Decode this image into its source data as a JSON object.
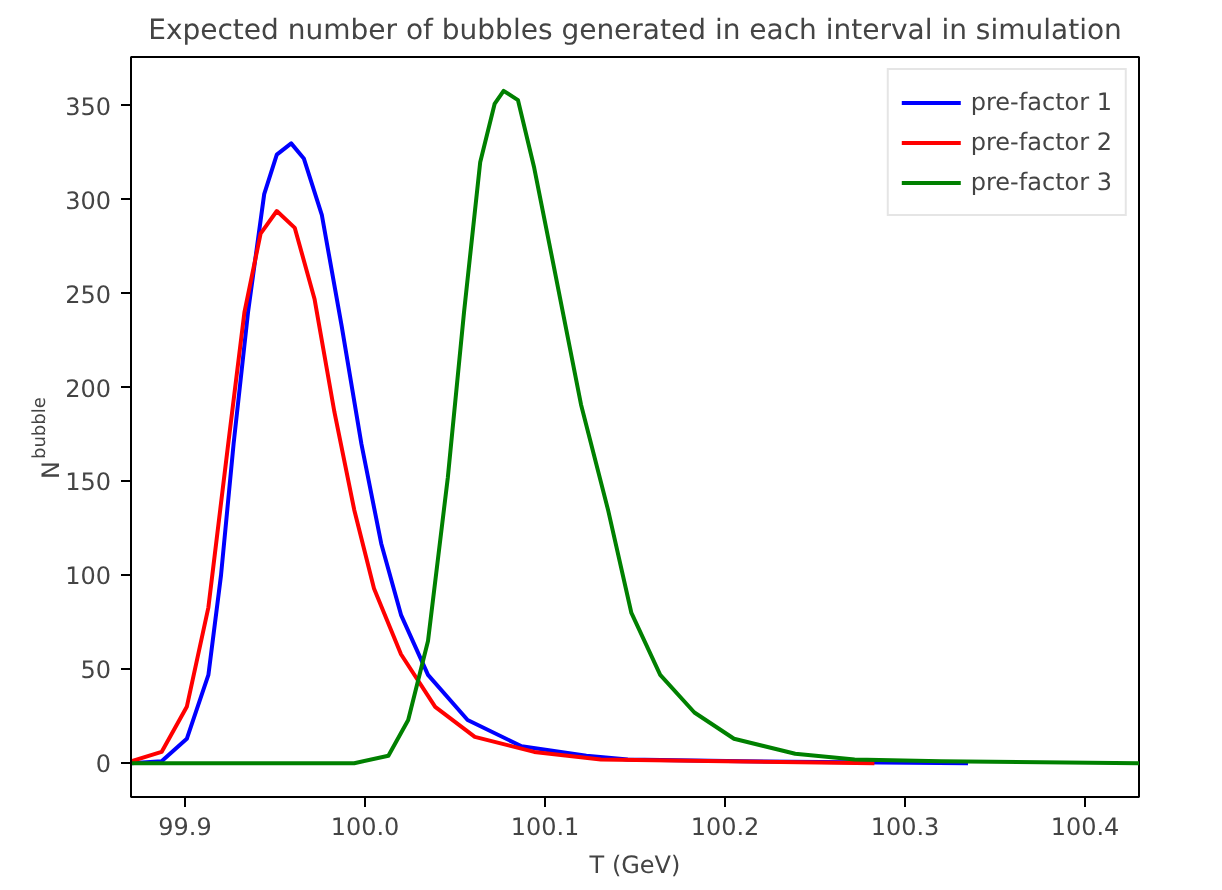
{
  "chart_data": {
    "type": "line",
    "title": "Expected number of bubbles generated in each interval in simulation",
    "xlabel": "T (GeV)",
    "ylabel": "N$_{bubble}$",
    "xlim": [
      99.87,
      100.43
    ],
    "ylim": [
      -18,
      376
    ],
    "xticks": [
      99.9,
      {
        "value": 100.0,
        "label": "100.0"
      },
      100.1,
      100.2,
      100.3,
      100.4
    ],
    "yticks": [
      0,
      50,
      100,
      150,
      200,
      250,
      300,
      350
    ],
    "grid": false,
    "legend": "top right",
    "marker": "none",
    "line_style": "solid",
    "series": [
      {
        "name": "pre-factor 1",
        "color": "#0000ff",
        "x": [
          99.87,
          99.887,
          99.901,
          99.913,
          99.92,
          99.927,
          99.935,
          99.944,
          99.951,
          99.959,
          99.966,
          99.976,
          99.987,
          99.998,
          100.009,
          100.02,
          100.035,
          100.057,
          100.087,
          100.123,
          100.146,
          100.21,
          100.335
        ],
        "values": [
          0,
          1,
          13,
          47,
          100,
          170,
          240,
          303,
          324,
          330,
          322,
          292,
          233,
          170,
          117,
          79,
          47,
          23,
          9,
          4,
          2,
          1,
          0
        ]
      },
      {
        "name": "pre-factor 2",
        "color": "#ff0000",
        "x": [
          99.87,
          99.887,
          99.901,
          99.913,
          99.924,
          99.933,
          99.942,
          99.951,
          99.961,
          99.972,
          99.983,
          99.994,
          100.005,
          100.02,
          100.039,
          100.061,
          100.094,
          100.131,
          100.2,
          100.283
        ],
        "values": [
          1,
          6,
          30,
          83,
          170,
          240,
          282,
          294,
          285,
          247,
          187,
          135,
          93,
          58,
          30,
          14,
          6,
          2,
          1,
          0
        ]
      },
      {
        "name": "pre-factor 3",
        "color": "#008000",
        "x": [
          99.87,
          99.994,
          100.013,
          100.024,
          100.035,
          100.046,
          100.055,
          100.064,
          100.072,
          100.077,
          100.085,
          100.094,
          100.105,
          100.12,
          100.135,
          100.148,
          100.164,
          100.183,
          100.205,
          100.239,
          100.272,
          100.32,
          100.43
        ],
        "values": [
          0,
          0,
          4,
          23,
          65,
          152,
          240,
          320,
          351,
          358,
          353,
          317,
          264,
          191,
          135,
          80,
          47,
          27,
          13,
          5,
          2,
          1,
          0
        ]
      }
    ]
  }
}
